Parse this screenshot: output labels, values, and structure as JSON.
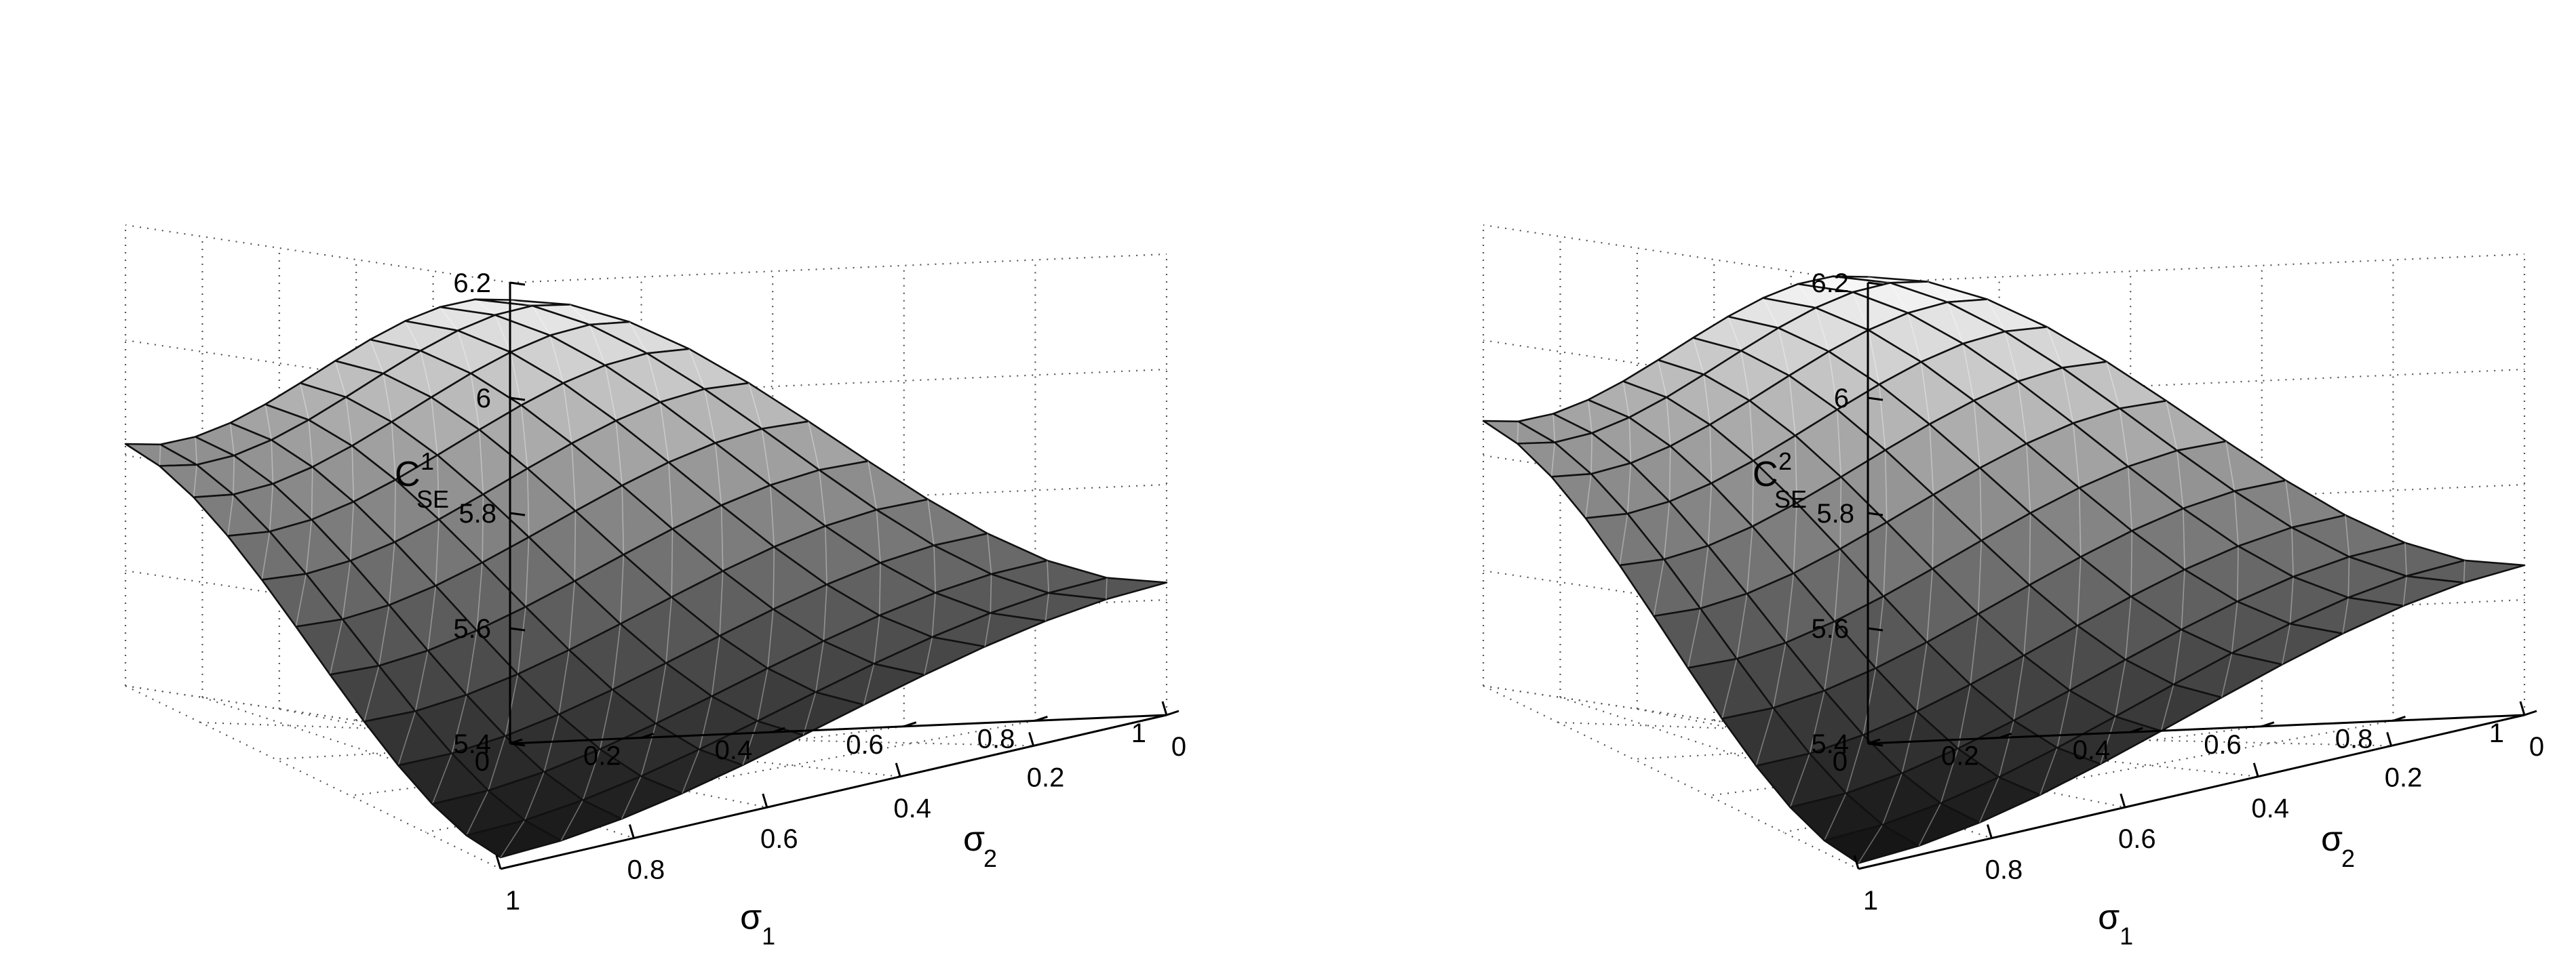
{
  "chart_data": [
    {
      "type": "surface",
      "zlabel": "C",
      "zlabel_superscript": "1",
      "zlabel_subscript": "SE",
      "xlabel": "σ",
      "xlabel_subscript": "1",
      "ylabel": "σ",
      "ylabel_subscript": "2",
      "xlim": [
        0,
        1
      ],
      "ylim": [
        0,
        1
      ],
      "zlim": [
        5.4,
        6.2
      ],
      "x_ticks": [
        "0",
        "0.2",
        "0.4",
        "0.6",
        "0.8",
        "1"
      ],
      "y_ticks": [
        "0",
        "0.2",
        "0.4",
        "0.6",
        "0.8",
        "1"
      ],
      "z_ticks": [
        "5.4",
        "5.6",
        "6",
        "6.2"
      ],
      "z_tick_overlap": "5.8",
      "grid": true,
      "colormap": "gray",
      "z_corner_s1_0_s2_0": 6.17,
      "z_corner_s1_1_s2_0": 5.82,
      "z_corner_s1_0_s2_1": 5.63,
      "z_corner_s1_1_s2_1": 5.42
    },
    {
      "type": "surface",
      "zlabel": "C",
      "zlabel_superscript": "2",
      "zlabel_subscript": "SE",
      "xlabel": "σ",
      "xlabel_subscript": "1",
      "ylabel": "σ",
      "ylabel_subscript": "2",
      "xlim": [
        0,
        1
      ],
      "ylim": [
        0,
        1
      ],
      "zlim": [
        5.4,
        6.2
      ],
      "x_ticks": [
        "0",
        "0.2",
        "0.4",
        "0.6",
        "0.8",
        "1"
      ],
      "y_ticks": [
        "0",
        "0.2",
        "0.4",
        "0.6",
        "0.8",
        "1"
      ],
      "z_ticks": [
        "5.4",
        "5.6",
        "6",
        "6.2"
      ],
      "z_tick_overlap": "5.8",
      "grid": true,
      "colormap": "gray",
      "z_corner_s1_0_s2_0": 6.21,
      "z_corner_s1_1_s2_0": 5.86,
      "z_corner_s1_0_s2_1": 5.66,
      "z_corner_s1_1_s2_1": 5.41
    }
  ]
}
